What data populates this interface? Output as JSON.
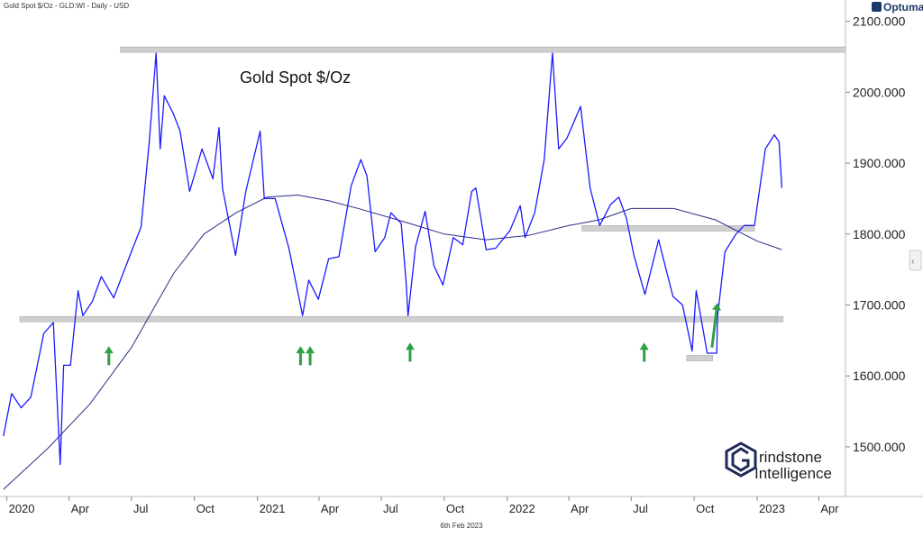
{
  "header": {
    "info": "Gold Spot $/Oz - GLD:WI - Daily - USD",
    "logo": "Optuma"
  },
  "footer": {
    "date": "6th Feb 2023"
  },
  "brand": {
    "line1": "rindstone",
    "line2": "Intelligence"
  },
  "colors": {
    "price": "#1a1aff",
    "moving_average": "#2b2b88",
    "level": "#cfcfcf",
    "arrow": "#2ea043"
  },
  "chart_data": {
    "type": "line",
    "title": "Gold Spot $/Oz",
    "xlabel": "",
    "ylabel": "",
    "ylim": [
      1430,
      2130
    ],
    "xlim": [
      "2019-12-22",
      "2023-05-10"
    ],
    "y_ticks": [
      {
        "value": 1500,
        "label": "1500.000"
      },
      {
        "value": 1600,
        "label": "1600.000"
      },
      {
        "value": 1700,
        "label": "1700.000"
      },
      {
        "value": 1800,
        "label": "1800.000"
      },
      {
        "value": 1900,
        "label": "1900.000"
      },
      {
        "value": 2000,
        "label": "2000.000"
      },
      {
        "value": 2100,
        "label": "2100.000"
      }
    ],
    "x_ticks": [
      {
        "date": "2020-01-01",
        "label": "2020"
      },
      {
        "date": "2020-04-01",
        "label": "Apr"
      },
      {
        "date": "2020-07-01",
        "label": "Jul"
      },
      {
        "date": "2020-10-01",
        "label": "Oct"
      },
      {
        "date": "2021-01-01",
        "label": "2021"
      },
      {
        "date": "2021-04-01",
        "label": "Apr"
      },
      {
        "date": "2021-07-01",
        "label": "Jul"
      },
      {
        "date": "2021-10-01",
        "label": "Oct"
      },
      {
        "date": "2022-01-01",
        "label": "2022"
      },
      {
        "date": "2022-04-01",
        "label": "Apr"
      },
      {
        "date": "2022-07-01",
        "label": "Jul"
      },
      {
        "date": "2022-10-01",
        "label": "Oct"
      },
      {
        "date": "2023-01-01",
        "label": "2023"
      },
      {
        "date": "2023-04-01",
        "label": "Apr"
      }
    ],
    "price": {
      "x": [
        "2019-12-27",
        "2020-01-08",
        "2020-01-22",
        "2020-02-05",
        "2020-02-24",
        "2020-03-09",
        "2020-03-19",
        "2020-03-24",
        "2020-04-03",
        "2020-04-14",
        "2020-04-21",
        "2020-05-05",
        "2020-05-18",
        "2020-06-05",
        "2020-06-19",
        "2020-07-01",
        "2020-07-15",
        "2020-07-27",
        "2020-08-06",
        "2020-08-12",
        "2020-08-18",
        "2020-08-31",
        "2020-09-10",
        "2020-09-24",
        "2020-10-12",
        "2020-10-28",
        "2020-11-06",
        "2020-11-11",
        "2020-11-30",
        "2020-12-15",
        "2021-01-05",
        "2021-01-11",
        "2021-01-27",
        "2021-02-16",
        "2021-03-08",
        "2021-03-17",
        "2021-03-31",
        "2021-04-15",
        "2021-04-30",
        "2021-05-18",
        "2021-06-01",
        "2021-06-10",
        "2021-06-22",
        "2021-07-06",
        "2021-07-15",
        "2021-07-30",
        "2021-08-06",
        "2021-08-09",
        "2021-08-20",
        "2021-09-03",
        "2021-09-16",
        "2021-09-29",
        "2021-10-14",
        "2021-10-28",
        "2021-11-10",
        "2021-11-16",
        "2021-12-01",
        "2021-12-15",
        "2022-01-05",
        "2022-01-20",
        "2022-01-27",
        "2022-02-10",
        "2022-02-24",
        "2022-03-08",
        "2022-03-17",
        "2022-03-29",
        "2022-04-18",
        "2022-05-02",
        "2022-05-16",
        "2022-06-01",
        "2022-06-13",
        "2022-06-24",
        "2022-07-05",
        "2022-07-21",
        "2022-08-10",
        "2022-08-17",
        "2022-08-31",
        "2022-09-14",
        "2022-09-28",
        "2022-10-04",
        "2022-10-20",
        "2022-11-03",
        "2022-11-04",
        "2022-11-15",
        "2022-12-01",
        "2022-12-13",
        "2022-12-28",
        "2023-01-13",
        "2023-01-26",
        "2023-02-02",
        "2023-02-06"
      ],
      "y": [
        1515,
        1575,
        1555,
        1570,
        1660,
        1675,
        1475,
        1615,
        1615,
        1720,
        1685,
        1705,
        1740,
        1710,
        1745,
        1775,
        1810,
        1930,
        2055,
        1920,
        1995,
        1970,
        1945,
        1860,
        1920,
        1878,
        1950,
        1865,
        1770,
        1860,
        1945,
        1850,
        1850,
        1780,
        1685,
        1735,
        1708,
        1765,
        1768,
        1868,
        1905,
        1882,
        1775,
        1795,
        1830,
        1815,
        1735,
        1685,
        1782,
        1832,
        1755,
        1728,
        1795,
        1785,
        1860,
        1865,
        1778,
        1780,
        1805,
        1840,
        1795,
        1830,
        1905,
        2055,
        1920,
        1935,
        1980,
        1865,
        1812,
        1842,
        1852,
        1822,
        1770,
        1715,
        1792,
        1765,
        1712,
        1700,
        1635,
        1720,
        1632,
        1632,
        1683,
        1775,
        1800,
        1812,
        1812,
        1920,
        1940,
        1930,
        1865
      ]
    },
    "moving_average": {
      "x": [
        "2019-12-27",
        "2020-03-01",
        "2020-05-01",
        "2020-07-01",
        "2020-09-01",
        "2020-10-15",
        "2020-12-01",
        "2021-01-15",
        "2021-03-01",
        "2021-04-15",
        "2021-06-01",
        "2021-08-01",
        "2021-10-01",
        "2021-12-01",
        "2022-02-01",
        "2022-04-01",
        "2022-05-15",
        "2022-07-01",
        "2022-09-01",
        "2022-11-01",
        "2023-01-01",
        "2023-02-06"
      ],
      "y": [
        1440,
        1498,
        1560,
        1640,
        1745,
        1800,
        1830,
        1852,
        1855,
        1847,
        1835,
        1818,
        1800,
        1792,
        1798,
        1812,
        1820,
        1836,
        1836,
        1820,
        1790,
        1778
      ]
    },
    "levels": [
      {
        "y": 2060,
        "x1": "2020-06-15",
        "x2": "2023-05-10"
      },
      {
        "y": 1680,
        "x1": "2020-01-20",
        "x2": "2023-02-08"
      },
      {
        "y": 1808,
        "x1": "2022-04-20",
        "x2": "2022-12-28"
      },
      {
        "y": 1625,
        "x1": "2022-09-20",
        "x2": "2022-10-28"
      }
    ],
    "arrows": [
      {
        "x": "2020-05-29",
        "y1": 1615,
        "y2": 1642
      },
      {
        "x": "2021-03-05",
        "y1": 1615,
        "y2": 1642
      },
      {
        "x": "2021-03-19",
        "y1": 1615,
        "y2": 1642
      },
      {
        "x": "2021-08-12",
        "y1": 1620,
        "y2": 1647
      },
      {
        "x": "2022-07-20",
        "y1": 1620,
        "y2": 1647
      },
      {
        "x": "2022-10-27",
        "x2": "2022-11-04",
        "y1": 1640,
        "y2": 1703
      }
    ]
  }
}
